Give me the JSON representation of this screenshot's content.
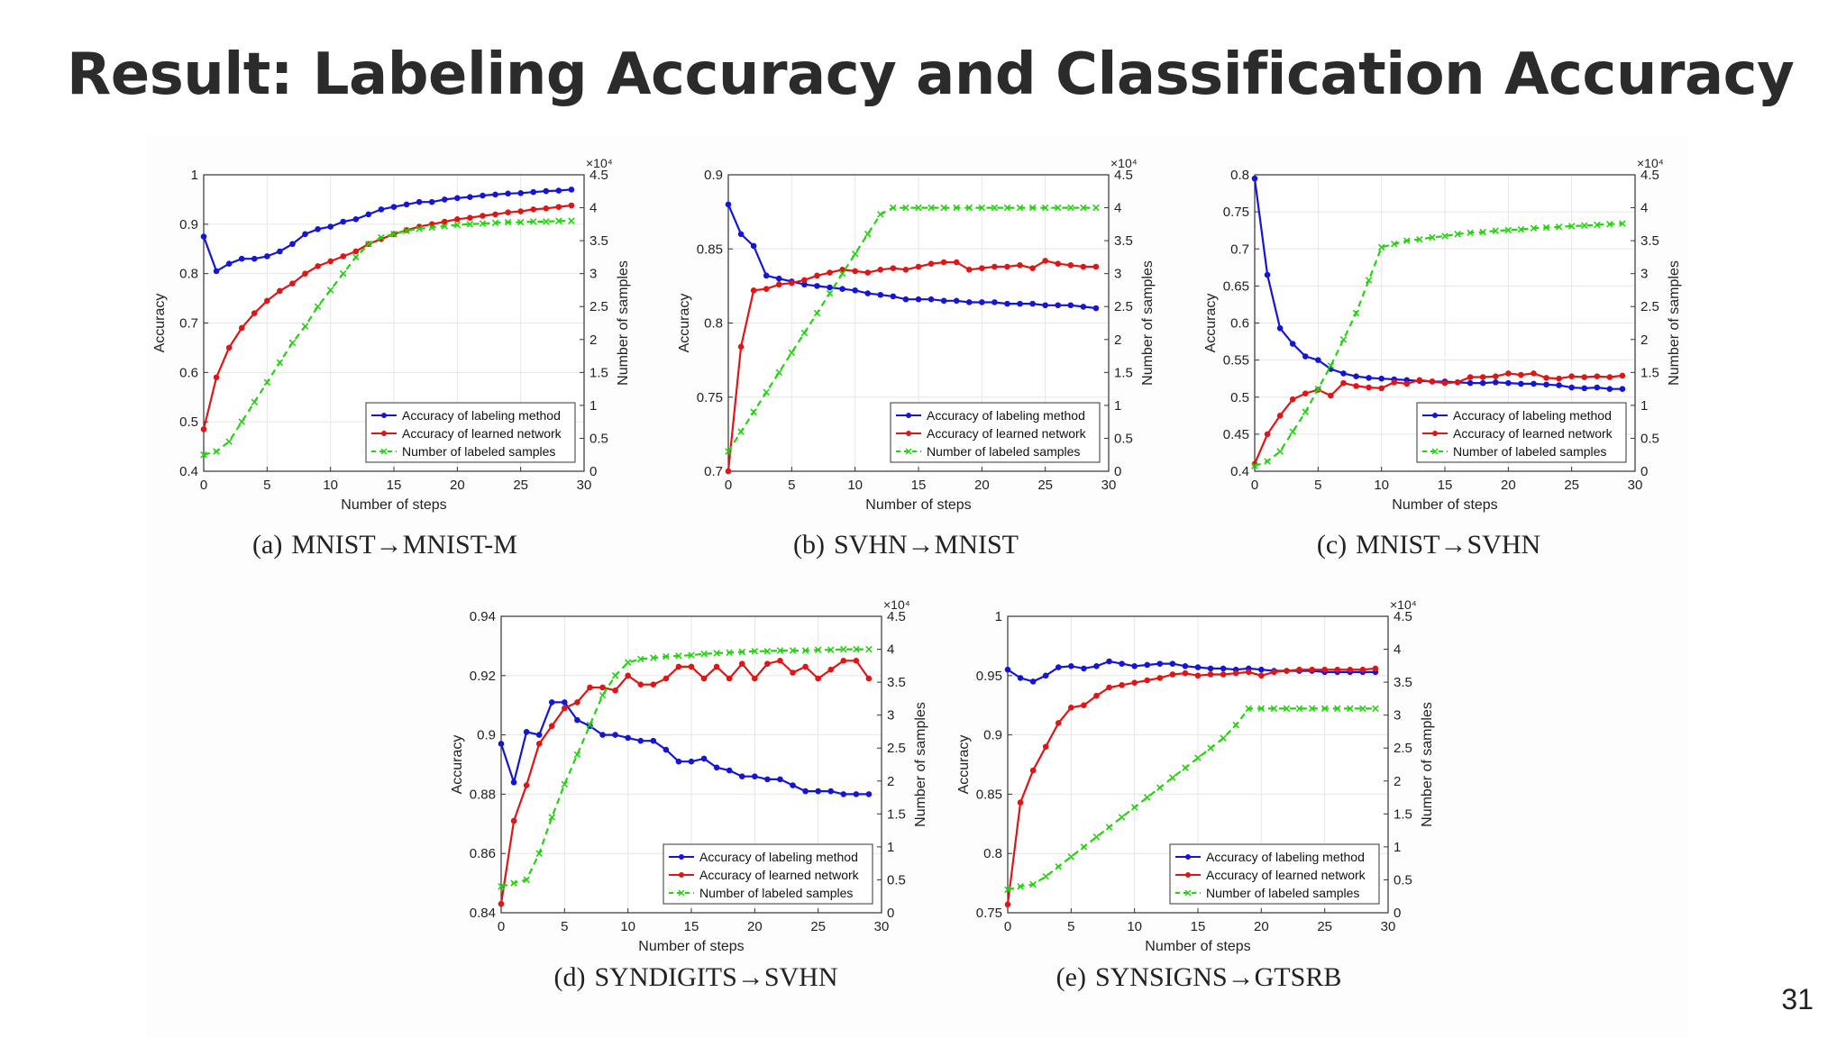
{
  "slide": {
    "title": "Result: Labeling Accuracy and Classification Accuracy",
    "page_number": "31"
  },
  "colors": {
    "labeling": "#1515d8",
    "network": "#e01515",
    "samples": "#22d40e"
  },
  "chart_data": [
    {
      "type": "line",
      "caption_label": "(a)",
      "caption_text": "MNIST→MNIST-M",
      "xlabel": "Number of steps",
      "ylabel": "Accuracy",
      "ylabel_right": "Number of samples",
      "right_multiplier": "×10⁴",
      "xlim": [
        0,
        30
      ],
      "ylim": [
        0.4,
        1.0
      ],
      "y2lim": [
        0,
        45000
      ],
      "xticks": [
        0,
        5,
        10,
        15,
        20,
        25,
        30
      ],
      "yticks": [
        0.4,
        0.5,
        0.6,
        0.7,
        0.8,
        0.9,
        1
      ],
      "y2ticks": [
        "0",
        "0.5",
        "1",
        "1.5",
        "2",
        "2.5",
        "3",
        "3.5",
        "4",
        "4.5"
      ],
      "legend_position": "bottom-right",
      "x": [
        0,
        1,
        2,
        3,
        4,
        5,
        6,
        7,
        8,
        9,
        10,
        11,
        12,
        13,
        14,
        15,
        16,
        17,
        18,
        19,
        20,
        21,
        22,
        23,
        24,
        25,
        26,
        27,
        28,
        29
      ],
      "series": [
        {
          "name": "Accuracy of labeling method",
          "axis": "left",
          "color": "#1515d8",
          "marker": "dot",
          "values": [
            0.875,
            0.805,
            0.82,
            0.83,
            0.83,
            0.835,
            0.845,
            0.86,
            0.88,
            0.89,
            0.895,
            0.905,
            0.91,
            0.92,
            0.93,
            0.935,
            0.94,
            0.945,
            0.945,
            0.95,
            0.953,
            0.955,
            0.958,
            0.96,
            0.962,
            0.963,
            0.965,
            0.967,
            0.968,
            0.97
          ]
        },
        {
          "name": "Accuracy of learned network",
          "axis": "left",
          "color": "#e01515",
          "marker": "dot",
          "values": [
            0.485,
            0.59,
            0.65,
            0.69,
            0.72,
            0.745,
            0.765,
            0.78,
            0.8,
            0.815,
            0.825,
            0.835,
            0.845,
            0.86,
            0.87,
            0.88,
            0.888,
            0.895,
            0.9,
            0.905,
            0.91,
            0.913,
            0.917,
            0.92,
            0.924,
            0.926,
            0.93,
            0.932,
            0.935,
            0.938
          ]
        },
        {
          "name": "Number of labeled samples",
          "axis": "right",
          "color": "#22d40e",
          "marker": "x",
          "dash": true,
          "values": [
            2500,
            3000,
            4500,
            7500,
            10500,
            13500,
            16500,
            19500,
            22000,
            25000,
            27500,
            30000,
            32500,
            34500,
            35500,
            36000,
            36500,
            36800,
            37000,
            37200,
            37400,
            37500,
            37600,
            37700,
            37800,
            37800,
            37900,
            37900,
            38000,
            38000
          ]
        }
      ]
    },
    {
      "type": "line",
      "caption_label": "(b)",
      "caption_text": "SVHN→MNIST",
      "xlabel": "Number of steps",
      "ylabel": "Accuracy",
      "ylabel_right": "Number of samples",
      "right_multiplier": "×10⁴",
      "xlim": [
        0,
        30
      ],
      "ylim": [
        0.7,
        0.9
      ],
      "y2lim": [
        0,
        45000
      ],
      "xticks": [
        0,
        5,
        10,
        15,
        20,
        25,
        30
      ],
      "yticks": [
        0.7,
        0.75,
        0.8,
        0.85,
        0.9
      ],
      "y2ticks": [
        "0",
        "0.5",
        "1",
        "1.5",
        "2",
        "2.5",
        "3",
        "3.5",
        "4",
        "4.5"
      ],
      "legend_position": "bottom-right",
      "x": [
        0,
        1,
        2,
        3,
        4,
        5,
        6,
        7,
        8,
        9,
        10,
        11,
        12,
        13,
        14,
        15,
        16,
        17,
        18,
        19,
        20,
        21,
        22,
        23,
        24,
        25,
        26,
        27,
        28,
        29
      ],
      "series": [
        {
          "name": "Accuracy of labeling method",
          "axis": "left",
          "color": "#1515d8",
          "marker": "dot",
          "values": [
            0.88,
            0.86,
            0.852,
            0.832,
            0.83,
            0.828,
            0.826,
            0.825,
            0.824,
            0.823,
            0.822,
            0.82,
            0.819,
            0.818,
            0.816,
            0.816,
            0.816,
            0.815,
            0.815,
            0.814,
            0.814,
            0.814,
            0.813,
            0.813,
            0.813,
            0.812,
            0.812,
            0.812,
            0.811,
            0.81
          ]
        },
        {
          "name": "Accuracy of learned network",
          "axis": "left",
          "color": "#e01515",
          "marker": "dot",
          "values": [
            0.7,
            0.784,
            0.822,
            0.823,
            0.826,
            0.827,
            0.829,
            0.832,
            0.834,
            0.836,
            0.835,
            0.834,
            0.836,
            0.837,
            0.836,
            0.838,
            0.84,
            0.841,
            0.841,
            0.836,
            0.837,
            0.838,
            0.838,
            0.839,
            0.837,
            0.842,
            0.84,
            0.839,
            0.838,
            0.838
          ]
        },
        {
          "name": "Number of labeled samples",
          "axis": "right",
          "color": "#22d40e",
          "marker": "x",
          "dash": true,
          "values": [
            3000,
            6000,
            9000,
            12000,
            15000,
            18000,
            21000,
            24000,
            27000,
            30000,
            33000,
            36000,
            39000,
            40000,
            40000,
            40000,
            40000,
            40000,
            40000,
            40000,
            40000,
            40000,
            40000,
            40000,
            40000,
            40000,
            40000,
            40000,
            40000,
            40000
          ]
        }
      ]
    },
    {
      "type": "line",
      "caption_label": "(c)",
      "caption_text": "MNIST→SVHN",
      "xlabel": "Number of steps",
      "ylabel": "Accuracy",
      "ylabel_right": "Number of samples",
      "right_multiplier": "×10⁴",
      "xlim": [
        0,
        30
      ],
      "ylim": [
        0.4,
        0.8
      ],
      "y2lim": [
        0,
        45000
      ],
      "xticks": [
        0,
        5,
        10,
        15,
        20,
        25,
        30
      ],
      "yticks": [
        0.4,
        0.45,
        0.5,
        0.55,
        0.6,
        0.65,
        0.7,
        0.75,
        0.8
      ],
      "y2ticks": [
        "0",
        "0.5",
        "1",
        "1.5",
        "2",
        "2.5",
        "3",
        "3.5",
        "4",
        "4.5"
      ],
      "legend_position": "bottom-right",
      "x": [
        0,
        1,
        2,
        3,
        4,
        5,
        6,
        7,
        8,
        9,
        10,
        11,
        12,
        13,
        14,
        15,
        16,
        17,
        18,
        19,
        20,
        21,
        22,
        23,
        24,
        25,
        26,
        27,
        28,
        29
      ],
      "series": [
        {
          "name": "Accuracy of labeling method",
          "axis": "left",
          "color": "#1515d8",
          "marker": "dot",
          "values": [
            0.795,
            0.665,
            0.593,
            0.572,
            0.555,
            0.55,
            0.538,
            0.532,
            0.528,
            0.526,
            0.525,
            0.524,
            0.523,
            0.522,
            0.521,
            0.521,
            0.52,
            0.519,
            0.519,
            0.52,
            0.519,
            0.518,
            0.518,
            0.517,
            0.516,
            0.513,
            0.512,
            0.513,
            0.511,
            0.511
          ]
        },
        {
          "name": "Accuracy of learned network",
          "axis": "left",
          "color": "#e01515",
          "marker": "dot",
          "values": [
            0.41,
            0.45,
            0.475,
            0.497,
            0.505,
            0.51,
            0.502,
            0.519,
            0.515,
            0.513,
            0.512,
            0.52,
            0.518,
            0.523,
            0.521,
            0.519,
            0.52,
            0.527,
            0.527,
            0.528,
            0.532,
            0.53,
            0.532,
            0.526,
            0.525,
            0.528,
            0.527,
            0.528,
            0.527,
            0.529
          ]
        },
        {
          "name": "Number of labeled samples",
          "axis": "right",
          "color": "#22d40e",
          "marker": "x",
          "dash": true,
          "values": [
            800,
            1500,
            3000,
            6000,
            9000,
            12500,
            16000,
            20000,
            24000,
            29000,
            34000,
            34500,
            35000,
            35200,
            35500,
            35700,
            36000,
            36200,
            36300,
            36500,
            36600,
            36700,
            36900,
            37000,
            37100,
            37200,
            37300,
            37400,
            37500,
            37600
          ]
        }
      ]
    },
    {
      "type": "line",
      "caption_label": "(d)",
      "caption_text": "SYNDIGITS→SVHN",
      "xlabel": "Number of steps",
      "ylabel": "Accuracy",
      "ylabel_right": "Number of samples",
      "right_multiplier": "×10⁴",
      "xlim": [
        0,
        30
      ],
      "ylim": [
        0.84,
        0.94
      ],
      "y2lim": [
        0,
        45000
      ],
      "xticks": [
        0,
        5,
        10,
        15,
        20,
        25,
        30
      ],
      "yticks": [
        0.84,
        0.86,
        0.88,
        0.9,
        0.92,
        0.94
      ],
      "y2ticks": [
        "0",
        "0.5",
        "1",
        "1.5",
        "2",
        "2.5",
        "3",
        "3.5",
        "4",
        "4.5"
      ],
      "legend_position": "bottom-right",
      "x": [
        0,
        1,
        2,
        3,
        4,
        5,
        6,
        7,
        8,
        9,
        10,
        11,
        12,
        13,
        14,
        15,
        16,
        17,
        18,
        19,
        20,
        21,
        22,
        23,
        24,
        25,
        26,
        27,
        28,
        29
      ],
      "series": [
        {
          "name": "Accuracy of labeling method",
          "axis": "left",
          "color": "#1515d8",
          "marker": "dot",
          "values": [
            0.897,
            0.884,
            0.901,
            0.9,
            0.911,
            0.911,
            0.905,
            0.903,
            0.9,
            0.9,
            0.899,
            0.898,
            0.898,
            0.895,
            0.891,
            0.891,
            0.892,
            0.889,
            0.888,
            0.886,
            0.886,
            0.885,
            0.885,
            0.883,
            0.881,
            0.881,
            0.881,
            0.88,
            0.88,
            0.88
          ]
        },
        {
          "name": "Accuracy of learned network",
          "axis": "left",
          "color": "#e01515",
          "marker": "dot",
          "values": [
            0.843,
            0.871,
            0.883,
            0.897,
            0.903,
            0.909,
            0.911,
            0.916,
            0.916,
            0.915,
            0.92,
            0.917,
            0.917,
            0.919,
            0.923,
            0.923,
            0.919,
            0.923,
            0.919,
            0.924,
            0.919,
            0.924,
            0.925,
            0.921,
            0.923,
            0.919,
            0.922,
            0.925,
            0.925,
            0.919
          ]
        },
        {
          "name": "Number of labeled samples",
          "axis": "right",
          "color": "#22d40e",
          "marker": "x",
          "dash": true,
          "values": [
            4000,
            4500,
            5000,
            9000,
            14500,
            19500,
            24000,
            28500,
            33000,
            36000,
            38000,
            38500,
            38700,
            38900,
            39000,
            39100,
            39300,
            39400,
            39500,
            39600,
            39700,
            39700,
            39800,
            39800,
            39800,
            39900,
            39900,
            40000,
            40000,
            40000
          ]
        }
      ]
    },
    {
      "type": "line",
      "caption_label": "(e)",
      "caption_text": "SYNSIGNS→GTSRB",
      "xlabel": "Number of steps",
      "ylabel": "Accuracy",
      "ylabel_right": "Number of samples",
      "right_multiplier": "×10⁴",
      "xlim": [
        0,
        30
      ],
      "ylim": [
        0.75,
        1.0
      ],
      "y2lim": [
        0,
        45000
      ],
      "xticks": [
        0,
        5,
        10,
        15,
        20,
        25,
        30
      ],
      "yticks": [
        0.75,
        0.8,
        0.85,
        0.9,
        0.95,
        1
      ],
      "y2ticks": [
        "0",
        "0.5",
        "1",
        "1.5",
        "2",
        "2.5",
        "3",
        "3.5",
        "4",
        "4.5"
      ],
      "legend_position": "bottom-right",
      "x": [
        0,
        1,
        2,
        3,
        4,
        5,
        6,
        7,
        8,
        9,
        10,
        11,
        12,
        13,
        14,
        15,
        16,
        17,
        18,
        19,
        20,
        21,
        22,
        23,
        24,
        25,
        26,
        27,
        28,
        29
      ],
      "series": [
        {
          "name": "Accuracy of labeling method",
          "axis": "left",
          "color": "#1515d8",
          "marker": "dot",
          "values": [
            0.955,
            0.948,
            0.945,
            0.95,
            0.957,
            0.958,
            0.956,
            0.958,
            0.962,
            0.96,
            0.958,
            0.959,
            0.96,
            0.96,
            0.958,
            0.957,
            0.956,
            0.956,
            0.955,
            0.956,
            0.955,
            0.954,
            0.954,
            0.954,
            0.954,
            0.953,
            0.953,
            0.953,
            0.953,
            0.953
          ]
        },
        {
          "name": "Accuracy of learned network",
          "axis": "left",
          "color": "#e01515",
          "marker": "dot",
          "values": [
            0.757,
            0.843,
            0.87,
            0.89,
            0.91,
            0.923,
            0.925,
            0.933,
            0.94,
            0.942,
            0.944,
            0.946,
            0.948,
            0.951,
            0.952,
            0.95,
            0.951,
            0.951,
            0.952,
            0.953,
            0.95,
            0.953,
            0.954,
            0.955,
            0.955,
            0.955,
            0.955,
            0.955,
            0.955,
            0.956
          ]
        },
        {
          "name": "Number of labeled samples",
          "axis": "right",
          "color": "#22d40e",
          "marker": "x",
          "dash": true,
          "values": [
            3500,
            4000,
            4300,
            5500,
            7000,
            8500,
            10000,
            11500,
            13000,
            14500,
            16000,
            17500,
            19000,
            20500,
            22000,
            23500,
            25000,
            26500,
            28500,
            31000,
            31000,
            31000,
            31000,
            31000,
            31000,
            31000,
            31000,
            31000,
            31000,
            31000
          ]
        }
      ]
    }
  ]
}
